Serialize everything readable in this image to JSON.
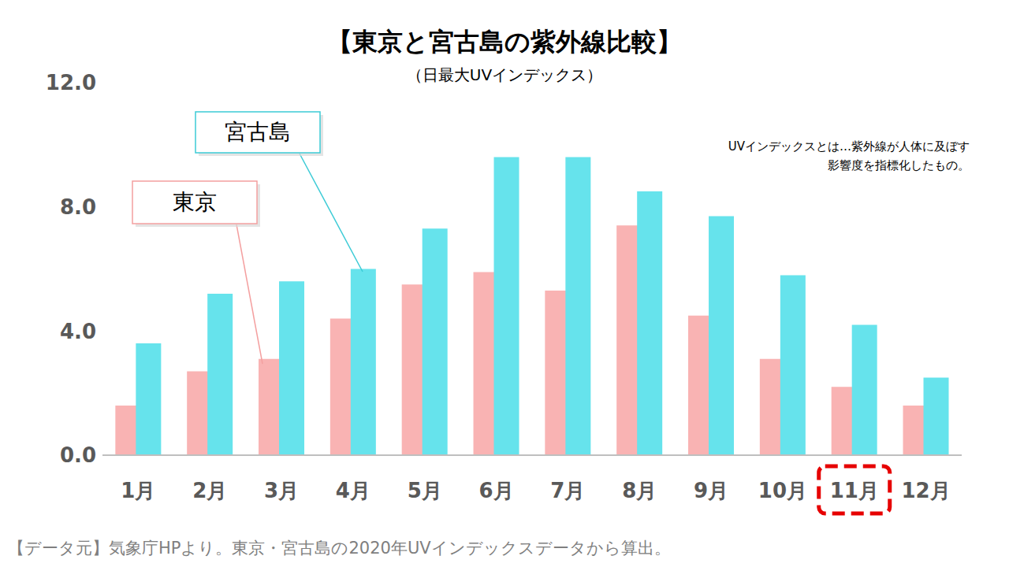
{
  "chart_data": {
    "type": "bar",
    "title": "【東京と宮古島の紫外線比較】",
    "subtitle": "（日最大UVインデックス）",
    "annotations": [
      "UVインデックスとは…紫外線が人体に及ぼす",
      "影響度を指標化したもの。"
    ],
    "source": "【データ元】気象庁HPより。東京・宮古島の2020年UVインデックスデータから算出。",
    "categories": [
      "1月",
      "2月",
      "3月",
      "4月",
      "5月",
      "6月",
      "7月",
      "8月",
      "9月",
      "10月",
      "11月",
      "12月"
    ],
    "series": [
      {
        "name": "東京",
        "color": "#f9b3b3",
        "values": [
          1.6,
          2.7,
          3.1,
          4.4,
          5.5,
          5.9,
          5.3,
          7.4,
          4.5,
          3.1,
          2.2,
          1.6
        ]
      },
      {
        "name": "宮古島",
        "color": "#66e3ec",
        "values": [
          3.6,
          5.2,
          5.6,
          6.0,
          7.3,
          9.6,
          9.6,
          8.5,
          7.7,
          5.8,
          4.2,
          2.5
        ]
      }
    ],
    "ylim": [
      0,
      12
    ],
    "yticks": [
      {
        "value": 0,
        "label": "0.0"
      },
      {
        "value": 4,
        "label": "4.0"
      },
      {
        "value": 8,
        "label": "8.0"
      },
      {
        "value": 12,
        "label": "12.0"
      }
    ],
    "grid": false
  }
}
